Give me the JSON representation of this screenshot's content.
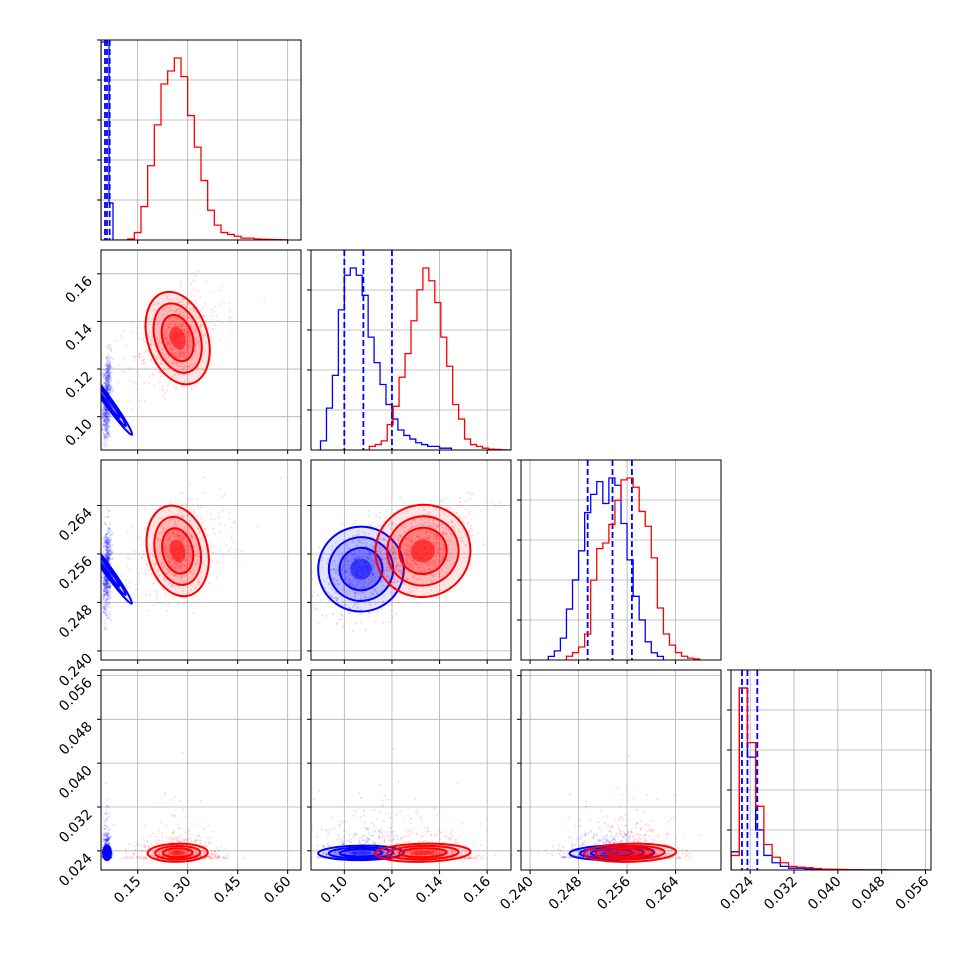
{
  "chart_data": {
    "type": "corner",
    "parameters": [
      {
        "xlim": [
          0.04,
          0.64
        ],
        "ticks": [
          0.15,
          0.3,
          0.45,
          0.6
        ],
        "tick_labels": [
          "0.15",
          "0.30",
          "0.45",
          "0.60"
        ]
      },
      {
        "xlim": [
          0.086,
          0.17
        ],
        "ticks": [
          0.1,
          0.12,
          0.14,
          0.16
        ],
        "tick_labels": [
          "0.10",
          "0.12",
          "0.14",
          "0.16"
        ]
      },
      {
        "xlim": [
          0.2385,
          0.2715
        ],
        "ticks": [
          0.24,
          0.248,
          0.256,
          0.264
        ],
        "tick_labels": [
          "0.240",
          "0.248",
          "0.256",
          "0.264"
        ]
      },
      {
        "xlim": [
          0.0205,
          0.057
        ],
        "ticks": [
          0.024,
          0.032,
          0.04,
          0.048,
          0.056
        ],
        "tick_labels": [
          "0.024",
          "0.032",
          "0.040",
          "0.048",
          "0.056"
        ]
      }
    ],
    "grid": true,
    "series": [
      {
        "color": "#0000ff",
        "mean": [
          0.058,
          0.107,
          0.2535,
          0.0235
        ],
        "std": [
          0.006,
          0.009,
          0.0035,
          0.0012
        ],
        "corr": [
          [
            1,
            0.2,
            0.2,
            0.0
          ],
          [
            0.2,
            1,
            0.5,
            0.1
          ],
          [
            0.2,
            0.5,
            1,
            0.15
          ],
          [
            0.0,
            0.1,
            0.15,
            1
          ]
        ],
        "quantiles": [
          [
            0.052,
            0.058,
            0.066
          ],
          [
            0.1,
            0.108,
            0.12
          ],
          [
            0.2495,
            0.2536,
            0.2568
          ],
          [
            0.0225,
            0.0235,
            0.0253
          ]
        ],
        "hist_1d": [
          {
            "bin_edges": [
              0.04,
              0.052,
              0.064,
              0.076
            ],
            "heights": [
              1.5,
              1.5,
              0.28
            ]
          },
          {
            "bin_edges": [
              0.09,
              0.0925,
              0.095,
              0.0975,
              0.1,
              0.1025,
              0.105,
              0.1075,
              0.11,
              0.1125,
              0.115,
              0.1175,
              0.12,
              0.1225,
              0.125,
              0.1275,
              0.13,
              0.1325,
              0.135,
              0.1375,
              0.14,
              0.1425,
              0.145
            ],
            "heights": [
              0.05,
              0.23,
              0.41,
              0.77,
              0.96,
              1.0,
              0.96,
              0.85,
              0.62,
              0.48,
              0.36,
              0.25,
              0.17,
              0.11,
              0.08,
              0.06,
              0.04,
              0.03,
              0.02,
              0.02,
              0.01,
              0.01
            ]
          },
          {
            "bin_edges": [
              0.243,
              0.244,
              0.245,
              0.246,
              0.247,
              0.248,
              0.249,
              0.25,
              0.251,
              0.252,
              0.253,
              0.254,
              0.255,
              0.256,
              0.257,
              0.258,
              0.259,
              0.26,
              0.261,
              0.262
            ],
            "heights": [
              0.02,
              0.05,
              0.12,
              0.28,
              0.44,
              0.6,
              0.81,
              0.91,
              0.98,
              0.86,
              1.0,
              0.96,
              0.75,
              0.55,
              0.35,
              0.22,
              0.1,
              0.04,
              0.02
            ]
          },
          {
            "bin_edges": [
              0.0205,
              0.022,
              0.0235,
              0.025,
              0.0265,
              0.028,
              0.0295,
              0.031,
              0.0325,
              0.034,
              0.0355,
              0.037,
              0.0385,
              0.04,
              0.0415,
              0.043,
              0.0445,
              0.046,
              0.0475,
              0.049,
              0.0505,
              0.052,
              0.0535,
              0.055,
              0.0565
            ],
            "heights": [
              0.1,
              1.0,
              0.62,
              0.22,
              0.08,
              0.04,
              0.02,
              0.01,
              0.01,
              0.005,
              0.003,
              0.002,
              0.001,
              0.001,
              0.0,
              0.0,
              0.0,
              0.0,
              0.0,
              0.0,
              0.0,
              0.0,
              0.0,
              0.0
            ]
          }
        ]
      },
      {
        "color": "#ff0000",
        "mean": [
          0.27,
          0.133,
          0.2565,
          0.0235
        ],
        "std": [
          0.045,
          0.01,
          0.0038,
          0.0015
        ],
        "corr": [
          [
            1,
            0.4,
            0.3,
            0.1
          ],
          [
            0.4,
            1,
            0.55,
            0.2
          ],
          [
            0.3,
            0.55,
            1,
            0.2
          ],
          [
            0.1,
            0.2,
            0.2,
            1
          ]
        ],
        "quantiles": [],
        "hist_1d": [
          {
            "bin_edges": [
              0.08,
              0.1,
              0.12,
              0.14,
              0.16,
              0.18,
              0.2,
              0.22,
              0.24,
              0.26,
              0.28,
              0.3,
              0.32,
              0.34,
              0.36,
              0.38,
              0.4,
              0.42,
              0.44,
              0.46,
              0.48,
              0.5,
              0.52,
              0.54,
              0.56,
              0.58,
              0.6
            ],
            "heights": [
              0.0,
              0.0,
              0.005,
              0.04,
              0.18,
              0.4,
              0.62,
              0.84,
              0.91,
              0.98,
              0.88,
              0.67,
              0.5,
              0.32,
              0.16,
              0.08,
              0.04,
              0.03,
              0.02,
              0.01,
              0.01,
              0.005,
              0.004,
              0.003,
              0.002,
              0.001
            ]
          },
          {
            "bin_edges": [
              0.108,
              0.1105,
              0.113,
              0.1155,
              0.118,
              0.1205,
              0.123,
              0.1255,
              0.128,
              0.1305,
              0.133,
              0.1355,
              0.138,
              0.1405,
              0.143,
              0.1455,
              0.148,
              0.1505,
              0.153,
              0.1555,
              0.158,
              0.1605,
              0.163,
              0.1655,
              0.168,
              0.1705
            ],
            "heights": [
              0.0,
              0.02,
              0.03,
              0.05,
              0.14,
              0.24,
              0.4,
              0.53,
              0.71,
              0.88,
              1.0,
              0.93,
              0.81,
              0.62,
              0.46,
              0.25,
              0.17,
              0.06,
              0.03,
              0.02,
              0.01,
              0.005,
              0.003,
              0.001,
              0.0
            ]
          },
          {
            "bin_edges": [
              0.246,
              0.247,
              0.248,
              0.249,
              0.25,
              0.251,
              0.252,
              0.253,
              0.254,
              0.255,
              0.256,
              0.257,
              0.258,
              0.259,
              0.26,
              0.261,
              0.262,
              0.263,
              0.264,
              0.265,
              0.266,
              0.267,
              0.268
            ],
            "heights": [
              0.02,
              0.04,
              0.07,
              0.14,
              0.43,
              0.6,
              0.63,
              0.73,
              0.86,
              0.97,
              0.98,
              0.93,
              0.8,
              0.72,
              0.55,
              0.28,
              0.14,
              0.08,
              0.04,
              0.02,
              0.01,
              0.005
            ]
          },
          {
            "bin_edges": [
              0.0205,
              0.022,
              0.0235,
              0.025,
              0.0265,
              0.028,
              0.0295,
              0.031,
              0.0325,
              0.034,
              0.0355,
              0.037,
              0.0385,
              0.04,
              0.0415,
              0.043,
              0.0445,
              0.046,
              0.0475,
              0.049,
              0.0505,
              0.052,
              0.0535,
              0.055,
              0.0565
            ],
            "heights": [
              0.08,
              1.0,
              0.7,
              0.35,
              0.14,
              0.07,
              0.04,
              0.02,
              0.015,
              0.012,
              0.008,
              0.005,
              0.004,
              0.003,
              0.002,
              0.002,
              0.001,
              0.001,
              0.001,
              0.0,
              0.0,
              0.0,
              0.0,
              0.0
            ]
          }
        ]
      }
    ]
  }
}
